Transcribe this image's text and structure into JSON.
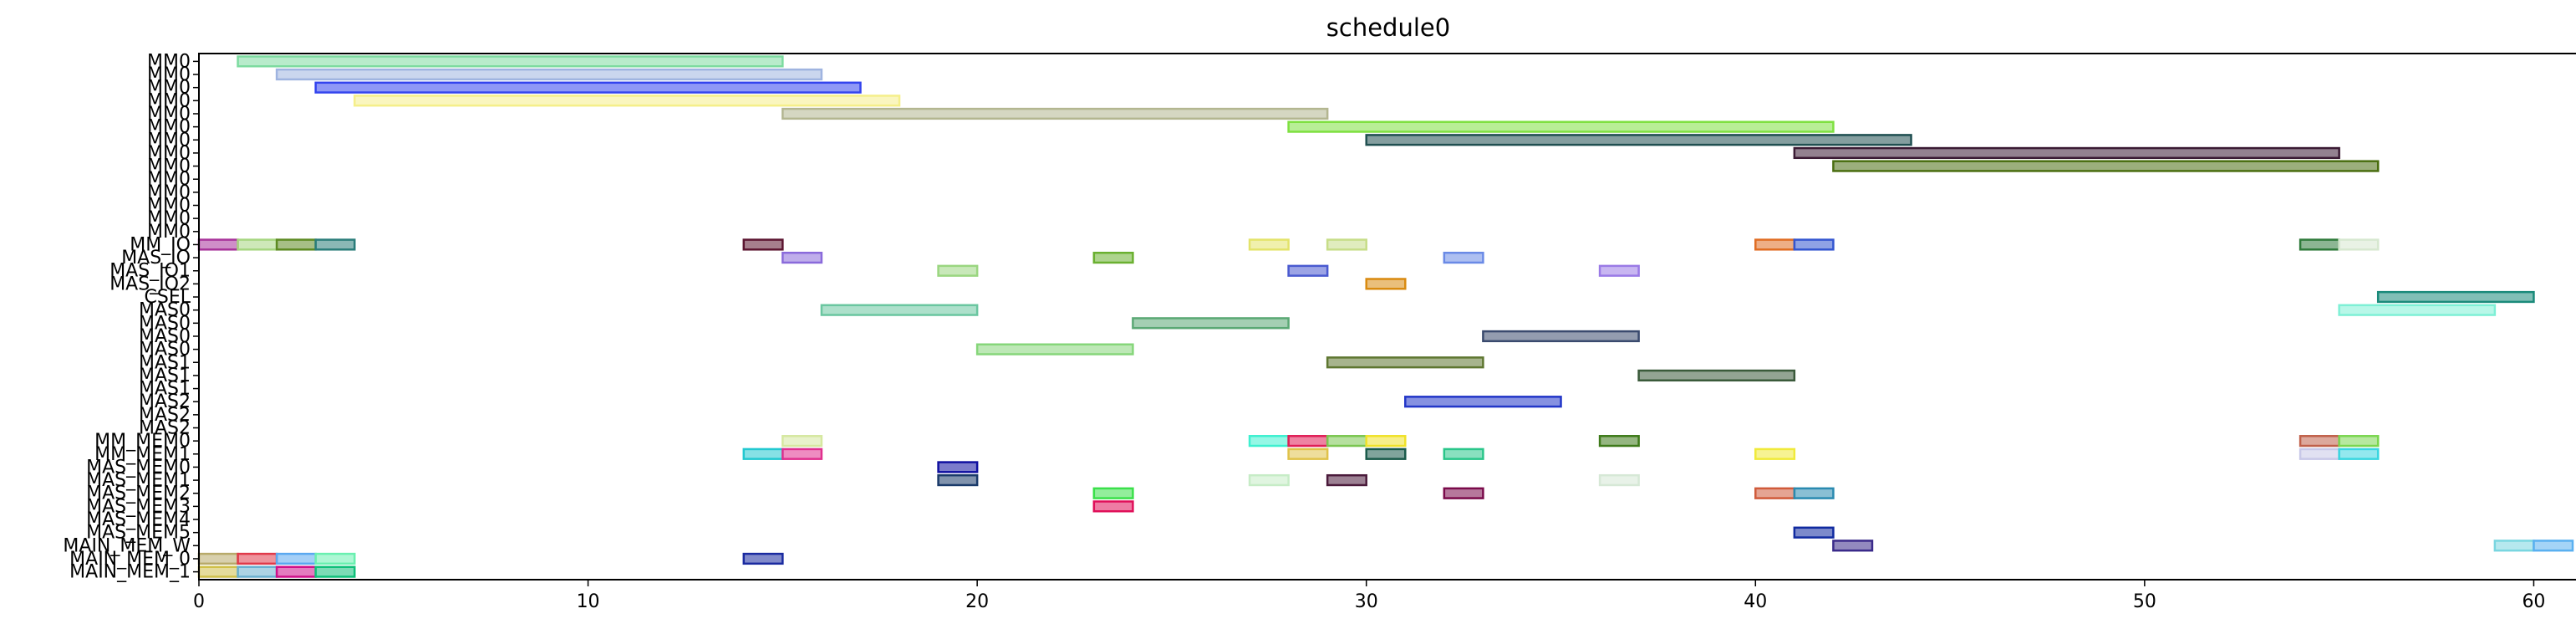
{
  "chart_data": {
    "type": "gantt",
    "title": "schedule0",
    "xlabel": "",
    "ylabel": "",
    "xlim": [
      0,
      61
    ],
    "x_ticks": [
      0,
      10,
      20,
      30,
      40,
      50,
      60
    ],
    "y_labels": [
      "MM0",
      "MM0",
      "MM0",
      "MM0",
      "MM0",
      "MM0",
      "MM0",
      "MM0",
      "MM0",
      "MM0",
      "MM0",
      "MM0",
      "MM0",
      "MM0",
      "MM_IO",
      "MAS_IO",
      "MAS_IO1",
      "MAS_IO2",
      "CSEL",
      "MAS0",
      "MAS0",
      "MAS0",
      "MAS0",
      "MAS1",
      "MAS1",
      "MAS1",
      "MAS2",
      "MAS2",
      "MAS2",
      "MM_MEM0",
      "MM_MEM1",
      "MAS_MEM0",
      "MAS_MEM1",
      "MAS_MEM2",
      "MAS_MEM3",
      "MAS_MEM4",
      "MAS_MEM5",
      "MAIN_MEM_W",
      "MAIN_MEM_0",
      "MAIN_MEM_1"
    ],
    "bars": [
      {
        "row": 0,
        "start": 1,
        "end": 15,
        "color": "#7ddba0"
      },
      {
        "row": 1,
        "start": 2,
        "end": 16,
        "color": "#9fb4e0"
      },
      {
        "row": 2,
        "start": 3,
        "end": 17,
        "color": "#3344ee"
      },
      {
        "row": 3,
        "start": 4,
        "end": 18,
        "color": "#f5ef8a"
      },
      {
        "row": 4,
        "start": 15,
        "end": 29,
        "color": "#b3b690"
      },
      {
        "row": 5,
        "start": 28,
        "end": 42,
        "color": "#7ee040"
      },
      {
        "row": 6,
        "start": 30,
        "end": 44,
        "color": "#1f4f50"
      },
      {
        "row": 7,
        "start": 41,
        "end": 55,
        "color": "#3a1a33"
      },
      {
        "row": 8,
        "start": 42,
        "end": 56,
        "color": "#4a6e10"
      },
      {
        "row": 14,
        "start": 0,
        "end": 1,
        "color": "#a8329a"
      },
      {
        "row": 14,
        "start": 1,
        "end": 2,
        "color": "#a6d680"
      },
      {
        "row": 14,
        "start": 2,
        "end": 3,
        "color": "#5d8a22"
      },
      {
        "row": 14,
        "start": 3,
        "end": 4,
        "color": "#2a7d7a"
      },
      {
        "row": 14,
        "start": 14,
        "end": 15,
        "color": "#5c1530"
      },
      {
        "row": 14,
        "start": 27,
        "end": 28,
        "color": "#e3e36a"
      },
      {
        "row": 14,
        "start": 29,
        "end": 30,
        "color": "#c7dd88"
      },
      {
        "row": 14,
        "start": 40,
        "end": 41,
        "color": "#e06c22"
      },
      {
        "row": 14,
        "start": 41,
        "end": 42,
        "color": "#3355d0"
      },
      {
        "row": 14,
        "start": 54,
        "end": 55,
        "color": "#2e7a3a"
      },
      {
        "row": 14,
        "start": 55,
        "end": 56,
        "color": "#d7e8d0"
      },
      {
        "row": 15,
        "start": 15,
        "end": 16,
        "color": "#8a6adb"
      },
      {
        "row": 15,
        "start": 23,
        "end": 24,
        "color": "#6ab030"
      },
      {
        "row": 15,
        "start": 32,
        "end": 33,
        "color": "#6a8ae6"
      },
      {
        "row": 16,
        "start": 19,
        "end": 20,
        "color": "#9ad680"
      },
      {
        "row": 16,
        "start": 28,
        "end": 29,
        "color": "#4a5ad0"
      },
      {
        "row": 16,
        "start": 36,
        "end": 37,
        "color": "#9a7ae6"
      },
      {
        "row": 17,
        "start": 30,
        "end": 31,
        "color": "#d98a10"
      },
      {
        "row": 18,
        "start": 56,
        "end": 60,
        "color": "#1a8a7a"
      },
      {
        "row": 19,
        "start": 16,
        "end": 20,
        "color": "#6ac6a0"
      },
      {
        "row": 19,
        "start": 55,
        "end": 59,
        "color": "#7ef0d6"
      },
      {
        "row": 20,
        "start": 24,
        "end": 28,
        "color": "#5aa874"
      },
      {
        "row": 21,
        "start": 33,
        "end": 37,
        "color": "#3a4a6e"
      },
      {
        "row": 22,
        "start": 20,
        "end": 24,
        "color": "#86d67a"
      },
      {
        "row": 23,
        "start": 29,
        "end": 33,
        "color": "#5e7630"
      },
      {
        "row": 24,
        "start": 37,
        "end": 41,
        "color": "#3a5a3a"
      },
      {
        "row": 26,
        "start": 31,
        "end": 35,
        "color": "#2236c8"
      },
      {
        "row": 29,
        "start": 15,
        "end": 16,
        "color": "#d6e8a0"
      },
      {
        "row": 29,
        "start": 27,
        "end": 28,
        "color": "#3ef0d0"
      },
      {
        "row": 29,
        "start": 28,
        "end": 29,
        "color": "#e01e56"
      },
      {
        "row": 29,
        "start": 29,
        "end": 30,
        "color": "#7ac650"
      },
      {
        "row": 29,
        "start": 30,
        "end": 31,
        "color": "#f0e22a"
      },
      {
        "row": 29,
        "start": 36,
        "end": 37,
        "color": "#3e7a1a"
      },
      {
        "row": 29,
        "start": 54,
        "end": 55,
        "color": "#c0604a"
      },
      {
        "row": 29,
        "start": 55,
        "end": 56,
        "color": "#7ad650"
      },
      {
        "row": 30,
        "start": 14,
        "end": 15,
        "color": "#22c8d0"
      },
      {
        "row": 30,
        "start": 15,
        "end": 16,
        "color": "#e0308e"
      },
      {
        "row": 30,
        "start": 28,
        "end": 29,
        "color": "#e0c24a"
      },
      {
        "row": 30,
        "start": 30,
        "end": 31,
        "color": "#1a5a4a"
      },
      {
        "row": 30,
        "start": 32,
        "end": 33,
        "color": "#2ac68a"
      },
      {
        "row": 30,
        "start": 40,
        "end": 41,
        "color": "#f0ea3a"
      },
      {
        "row": 30,
        "start": 54,
        "end": 55,
        "color": "#c8c8e8"
      },
      {
        "row": 30,
        "start": 55,
        "end": 56,
        "color": "#3ad6e0"
      },
      {
        "row": 31,
        "start": 19,
        "end": 20,
        "color": "#1010a0"
      },
      {
        "row": 32,
        "start": 19,
        "end": 20,
        "color": "#1a3a6a"
      },
      {
        "row": 32,
        "start": 27,
        "end": 28,
        "color": "#c6ecc6"
      },
      {
        "row": 32,
        "start": 29,
        "end": 30,
        "color": "#4a1a3a"
      },
      {
        "row": 32,
        "start": 36,
        "end": 37,
        "color": "#d6e8d6"
      },
      {
        "row": 33,
        "start": 23,
        "end": 24,
        "color": "#3ae04a"
      },
      {
        "row": 33,
        "start": 32,
        "end": 33,
        "color": "#7a0a4a"
      },
      {
        "row": 33,
        "start": 40,
        "end": 41,
        "color": "#d05a3a"
      },
      {
        "row": 33,
        "start": 41,
        "end": 42,
        "color": "#2a8ab0"
      },
      {
        "row": 34,
        "start": 23,
        "end": 24,
        "color": "#e0105a"
      },
      {
        "row": 36,
        "start": 41,
        "end": 42,
        "color": "#102aa0"
      },
      {
        "row": 37,
        "start": 42,
        "end": 43,
        "color": "#3a2a8a"
      },
      {
        "row": 37,
        "start": 59,
        "end": 60,
        "color": "#7ad6e0"
      },
      {
        "row": 37,
        "start": 60,
        "end": 61,
        "color": "#5ab0f0"
      },
      {
        "row": 38,
        "start": 0,
        "end": 1,
        "color": "#b8aa6a"
      },
      {
        "row": 38,
        "start": 1,
        "end": 2,
        "color": "#e03a4a"
      },
      {
        "row": 38,
        "start": 2,
        "end": 3,
        "color": "#5aa8f0"
      },
      {
        "row": 38,
        "start": 3,
        "end": 4,
        "color": "#6af0b0"
      },
      {
        "row": 38,
        "start": 14,
        "end": 15,
        "color": "#1a2aa0"
      },
      {
        "row": 39,
        "start": 0,
        "end": 1,
        "color": "#d0c04a"
      },
      {
        "row": 39,
        "start": 1,
        "end": 2,
        "color": "#6ab0d0"
      },
      {
        "row": 39,
        "start": 2,
        "end": 3,
        "color": "#d0108a"
      },
      {
        "row": 39,
        "start": 3,
        "end": 4,
        "color": "#10c07a"
      }
    ]
  }
}
